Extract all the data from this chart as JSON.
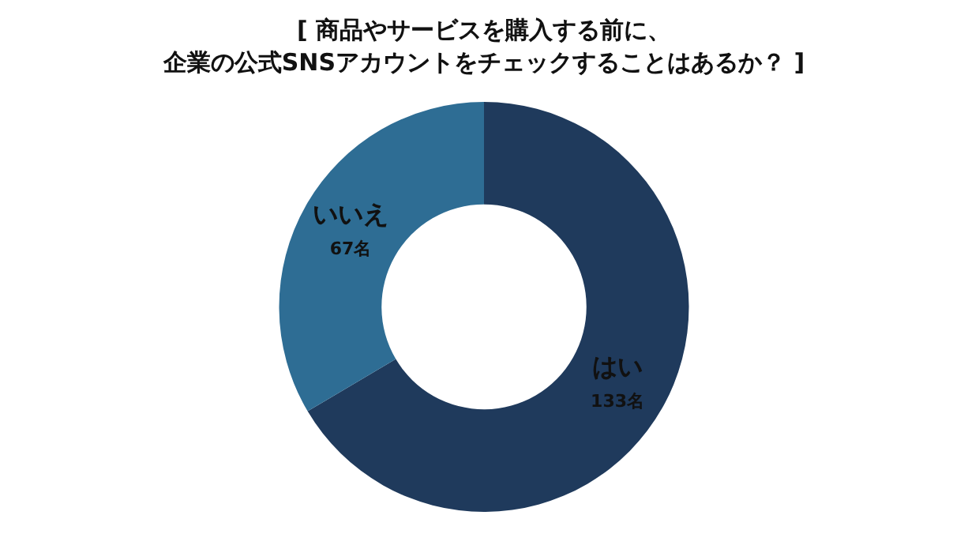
{
  "chart_data": {
    "type": "donut",
    "title": "[ 商品やサービスを購入する前に、企業の公式SNSアカウントをチェックすることはあるか？ ]",
    "categories": [
      "はい",
      "いいえ"
    ],
    "values": [
      133,
      67
    ],
    "value_labels": [
      "133名",
      "67名"
    ],
    "colors": [
      "#1f3a5c",
      "#2e6d94"
    ],
    "legend": false
  }
}
